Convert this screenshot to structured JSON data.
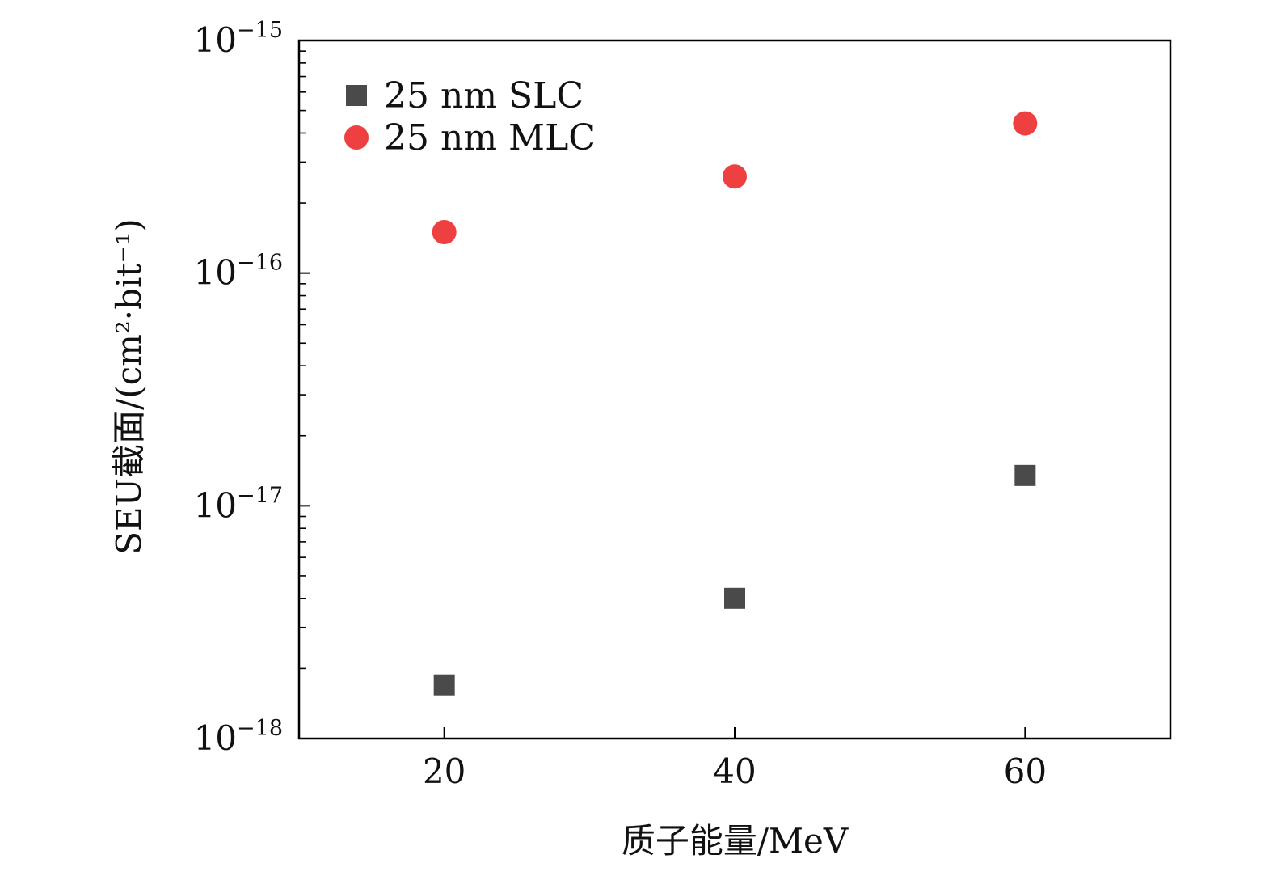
{
  "chart_data": {
    "type": "scatter",
    "title": "",
    "xlabel": "质子能量/MeV",
    "ylabel": "SEU截面/(cm²·bit⁻¹)",
    "xlim": [
      10,
      70
    ],
    "ylim": [
      1e-18,
      1e-15
    ],
    "yscale": "log",
    "x_ticks": [
      20,
      40,
      60
    ],
    "y_ticks": [
      {
        "value": 1e-18,
        "base": "10",
        "exp": "−18"
      },
      {
        "value": 1e-17,
        "base": "10",
        "exp": "−17"
      },
      {
        "value": 1e-16,
        "base": "10",
        "exp": "−16"
      },
      {
        "value": 1e-15,
        "base": "10",
        "exp": "−15"
      }
    ],
    "grid": false,
    "legend_position": "top-left",
    "series": [
      {
        "name": "25 nm SLC",
        "marker": "square",
        "color": "#4a4a4a",
        "points": [
          {
            "x": 20,
            "y": 1.7e-18
          },
          {
            "x": 40,
            "y": 4e-18
          },
          {
            "x": 60,
            "y": 1.35e-17
          }
        ]
      },
      {
        "name": "25 nm MLC",
        "marker": "circle",
        "color": "#ee4040",
        "points": [
          {
            "x": 20,
            "y": 1.5e-16
          },
          {
            "x": 40,
            "y": 2.6e-16
          },
          {
            "x": 60,
            "y": 4.4e-16
          }
        ]
      }
    ]
  }
}
